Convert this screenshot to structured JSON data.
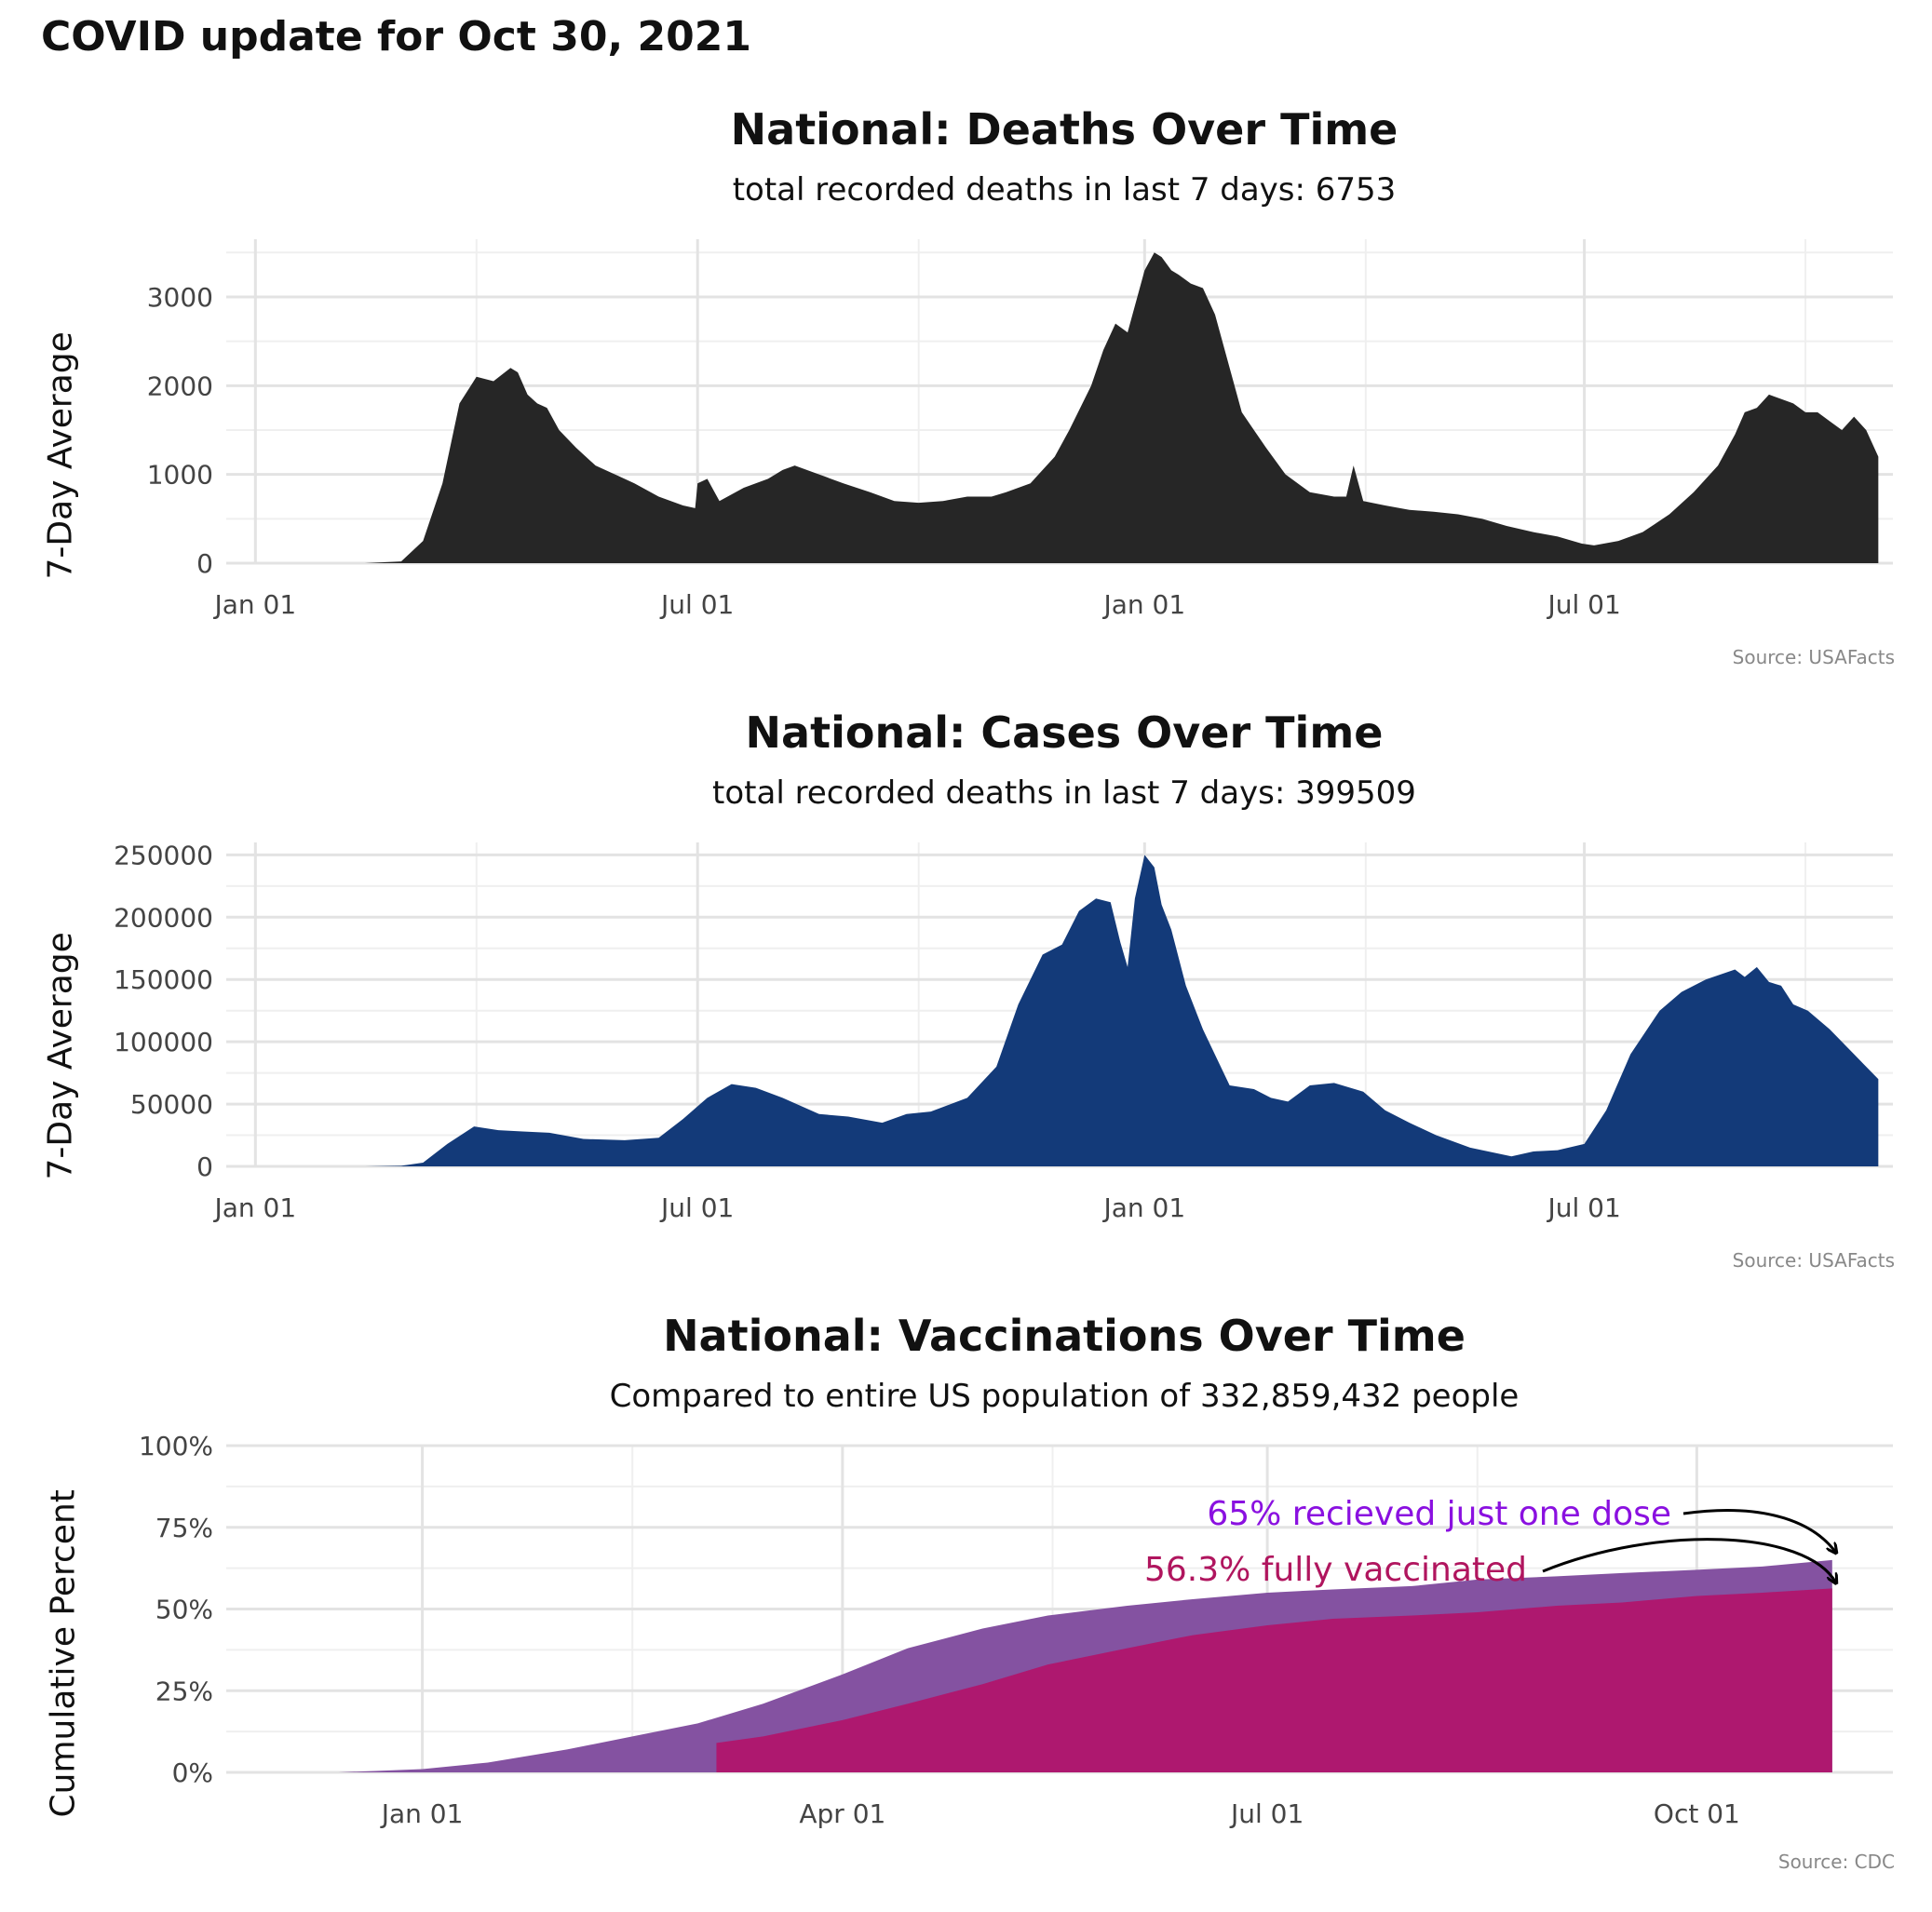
{
  "page": {
    "title": "COVID update for Oct 30, 2021"
  },
  "panels": [
    {
      "id": "deaths",
      "title": "National: Deaths Over Time",
      "subtitle": "total recorded deaths in last 7 days: 6753",
      "ylabel": "7-Day Average",
      "source": "Source: USAFacts",
      "fill": "#262626"
    },
    {
      "id": "cases",
      "title": "National: Cases Over Time",
      "subtitle": "total recorded deaths in last 7 days: 399509",
      "ylabel": "7-Day Average",
      "source": "Source: USAFacts",
      "fill": "#133a79"
    },
    {
      "id": "vaccinations",
      "title": "National: Vaccinations Over Time",
      "subtitle": "Compared to entire US population of 332,859,432 people",
      "ylabel": "Cumulative Percent",
      "source": "Source: CDC",
      "annotations": [
        {
          "text": "65% recieved just one dose",
          "color": "#8a10e0"
        },
        {
          "text": "56.3% fully vaccinated",
          "color": "#b0155e"
        }
      ]
    }
  ],
  "chart_data": [
    {
      "type": "area",
      "title": "National: Deaths Over Time",
      "subtitle": "total recorded deaths in last 7 days: 6753",
      "ylabel": "7-Day Average",
      "xlim": [
        "2019-12-20",
        "2021-11-05"
      ],
      "ylim": [
        0,
        3650
      ],
      "x_ticks": [
        "2020-01-01",
        "2020-07-01",
        "2021-01-01",
        "2021-07-01"
      ],
      "x_tick_labels": [
        "Jan 01",
        "Jul 01",
        "Jan 01",
        "Jul 01"
      ],
      "y_ticks": [
        0,
        1000,
        2000,
        3000
      ],
      "y_tick_labels": [
        "0",
        "1000",
        "2000",
        "3000"
      ],
      "grid": true,
      "color": "#262626",
      "series": [
        {
          "x": [
            "2020-01-01",
            "2020-02-15",
            "2020-03-01",
            "2020-03-10",
            "2020-03-18",
            "2020-03-25",
            "2020-04-01",
            "2020-04-08",
            "2020-04-15",
            "2020-04-18",
            "2020-04-22",
            "2020-04-26",
            "2020-04-30",
            "2020-05-05",
            "2020-05-12",
            "2020-05-20",
            "2020-05-28",
            "2020-06-05",
            "2020-06-15",
            "2020-06-25",
            "2020-06-30",
            "2020-07-01",
            "2020-07-05",
            "2020-07-10",
            "2020-07-20",
            "2020-07-30",
            "2020-08-05",
            "2020-08-10",
            "2020-08-20",
            "2020-08-30",
            "2020-09-10",
            "2020-09-20",
            "2020-09-30",
            "2020-10-10",
            "2020-10-20",
            "2020-10-30",
            "2020-11-05",
            "2020-11-15",
            "2020-11-25",
            "2020-12-01",
            "2020-12-10",
            "2020-12-15",
            "2020-12-20",
            "2020-12-25",
            "2021-01-01",
            "2021-01-05",
            "2021-01-08",
            "2021-01-12",
            "2021-01-15",
            "2021-01-20",
            "2021-01-25",
            "2021-01-30",
            "2021-02-05",
            "2021-02-10",
            "2021-02-15",
            "2021-02-20",
            "2021-02-28",
            "2021-03-10",
            "2021-03-20",
            "2021-03-25",
            "2021-03-28",
            "2021-04-01",
            "2021-04-10",
            "2021-04-20",
            "2021-04-30",
            "2021-05-10",
            "2021-05-20",
            "2021-05-30",
            "2021-06-10",
            "2021-06-20",
            "2021-06-30",
            "2021-07-05",
            "2021-07-15",
            "2021-07-25",
            "2021-08-05",
            "2021-08-15",
            "2021-08-25",
            "2021-09-01",
            "2021-09-05",
            "2021-09-10",
            "2021-09-15",
            "2021-09-20",
            "2021-09-25",
            "2021-09-30",
            "2021-10-05",
            "2021-10-10",
            "2021-10-15",
            "2021-10-20",
            "2021-10-25",
            "2021-10-30"
          ],
          "y": [
            0,
            0,
            20,
            250,
            900,
            1800,
            2100,
            2050,
            2200,
            2150,
            1900,
            1800,
            1750,
            1500,
            1300,
            1100,
            1000,
            900,
            750,
            650,
            620,
            900,
            950,
            700,
            850,
            950,
            1050,
            1100,
            1000,
            900,
            800,
            700,
            680,
            700,
            750,
            750,
            800,
            900,
            1200,
            1500,
            2000,
            2400,
            2700,
            2600,
            3300,
            3500,
            3450,
            3300,
            3250,
            3150,
            3100,
            2800,
            2200,
            1700,
            1500,
            1300,
            1000,
            800,
            750,
            750,
            1100,
            700,
            650,
            600,
            580,
            550,
            500,
            420,
            350,
            300,
            220,
            200,
            250,
            350,
            550,
            800,
            1100,
            1450,
            1700,
            1750,
            1900,
            1850,
            1800,
            1700,
            1700,
            1600,
            1500,
            1650,
            1500,
            1200
          ]
        }
      ]
    },
    {
      "type": "area",
      "title": "National: Cases Over Time",
      "subtitle": "total recorded deaths in last 7 days: 399509",
      "ylabel": "7-Day Average",
      "xlim": [
        "2019-12-20",
        "2021-11-05"
      ],
      "ylim": [
        0,
        260000
      ],
      "x_ticks": [
        "2020-01-01",
        "2020-07-01",
        "2021-01-01",
        "2021-07-01"
      ],
      "x_tick_labels": [
        "Jan 01",
        "Jul 01",
        "Jan 01",
        "Jul 01"
      ],
      "y_ticks": [
        0,
        50000,
        100000,
        150000,
        200000,
        250000
      ],
      "y_tick_labels": [
        "0",
        "50000",
        "100000",
        "150000",
        "200000",
        "250000"
      ],
      "grid": true,
      "color": "#133a79",
      "series": [
        {
          "x": [
            "2020-01-01",
            "2020-02-15",
            "2020-03-01",
            "2020-03-10",
            "2020-03-20",
            "2020-03-31",
            "2020-04-10",
            "2020-04-20",
            "2020-05-01",
            "2020-05-15",
            "2020-06-01",
            "2020-06-15",
            "2020-06-25",
            "2020-07-05",
            "2020-07-15",
            "2020-07-25",
            "2020-08-05",
            "2020-08-20",
            "2020-09-01",
            "2020-09-15",
            "2020-09-25",
            "2020-10-05",
            "2020-10-20",
            "2020-11-01",
            "2020-11-10",
            "2020-11-20",
            "2020-11-28",
            "2020-12-05",
            "2020-12-12",
            "2020-12-18",
            "2020-12-22",
            "2020-12-25",
            "2020-12-28",
            "2021-01-01",
            "2021-01-05",
            "2021-01-08",
            "2021-01-12",
            "2021-01-18",
            "2021-01-25",
            "2021-02-05",
            "2021-02-15",
            "2021-02-22",
            "2021-03-01",
            "2021-03-10",
            "2021-03-20",
            "2021-04-01",
            "2021-04-10",
            "2021-04-20",
            "2021-05-01",
            "2021-05-15",
            "2021-06-01",
            "2021-06-10",
            "2021-06-20",
            "2021-07-01",
            "2021-07-10",
            "2021-07-20",
            "2021-08-01",
            "2021-08-10",
            "2021-08-20",
            "2021-09-01",
            "2021-09-05",
            "2021-09-10",
            "2021-09-15",
            "2021-09-20",
            "2021-09-25",
            "2021-10-01",
            "2021-10-10",
            "2021-10-20",
            "2021-10-30"
          ],
          "y": [
            0,
            0,
            500,
            3000,
            18000,
            32000,
            29000,
            28000,
            27000,
            22000,
            21000,
            23000,
            38000,
            55000,
            66000,
            63000,
            55000,
            42000,
            40000,
            35000,
            42000,
            44000,
            55000,
            80000,
            130000,
            170000,
            178000,
            205000,
            215000,
            212000,
            180000,
            160000,
            215000,
            250000,
            240000,
            210000,
            190000,
            145000,
            110000,
            65000,
            62000,
            55000,
            52000,
            65000,
            67000,
            60000,
            45000,
            35000,
            25000,
            15000,
            8000,
            12000,
            13000,
            18000,
            45000,
            90000,
            125000,
            140000,
            150000,
            158000,
            152000,
            160000,
            148000,
            145000,
            130000,
            125000,
            110000,
            90000,
            70000
          ]
        }
      ]
    },
    {
      "type": "area",
      "title": "National: Vaccinations Over Time",
      "subtitle": "Compared to entire US population of 332,859,432 people",
      "ylabel": "Cumulative Percent",
      "xlim": [
        "2020-11-20",
        "2021-11-12"
      ],
      "ylim": [
        0,
        100
      ],
      "x_ticks": [
        "2021-01-01",
        "2021-04-01",
        "2021-07-01",
        "2021-10-01"
      ],
      "x_tick_labels": [
        "Jan 01",
        "Apr 01",
        "Jul 01",
        "Oct 01"
      ],
      "y_ticks": [
        0,
        25,
        50,
        75,
        100
      ],
      "y_tick_labels": [
        "0%",
        "25%",
        "50%",
        "75%",
        "100%"
      ],
      "grid": true,
      "series": [
        {
          "name": "65% recieved just one dose",
          "color": "#8452a1",
          "x": [
            "2020-12-14",
            "2021-01-01",
            "2021-01-15",
            "2021-02-01",
            "2021-02-15",
            "2021-03-01",
            "2021-03-15",
            "2021-04-01",
            "2021-04-15",
            "2021-05-01",
            "2021-05-15",
            "2021-06-01",
            "2021-06-15",
            "2021-07-01",
            "2021-07-15",
            "2021-08-01",
            "2021-08-15",
            "2021-09-01",
            "2021-09-15",
            "2021-10-01",
            "2021-10-15",
            "2021-10-30"
          ],
          "y": [
            0,
            1,
            3,
            7,
            11,
            15,
            21,
            30,
            38,
            44,
            48,
            51,
            53,
            55,
            56,
            57,
            59,
            60,
            61,
            62,
            63,
            65
          ]
        },
        {
          "name": "56.3% fully vaccinated",
          "color": "#ae186f",
          "x": [
            "2021-03-05",
            "2021-03-15",
            "2021-04-01",
            "2021-04-15",
            "2021-05-01",
            "2021-05-15",
            "2021-06-01",
            "2021-06-15",
            "2021-07-01",
            "2021-07-15",
            "2021-08-01",
            "2021-08-15",
            "2021-09-01",
            "2021-09-15",
            "2021-10-01",
            "2021-10-15",
            "2021-10-30"
          ],
          "y": [
            9,
            11,
            16,
            21,
            27,
            33,
            38,
            42,
            45,
            47,
            48,
            49,
            51,
            52,
            54,
            55,
            56.3
          ]
        }
      ]
    }
  ]
}
